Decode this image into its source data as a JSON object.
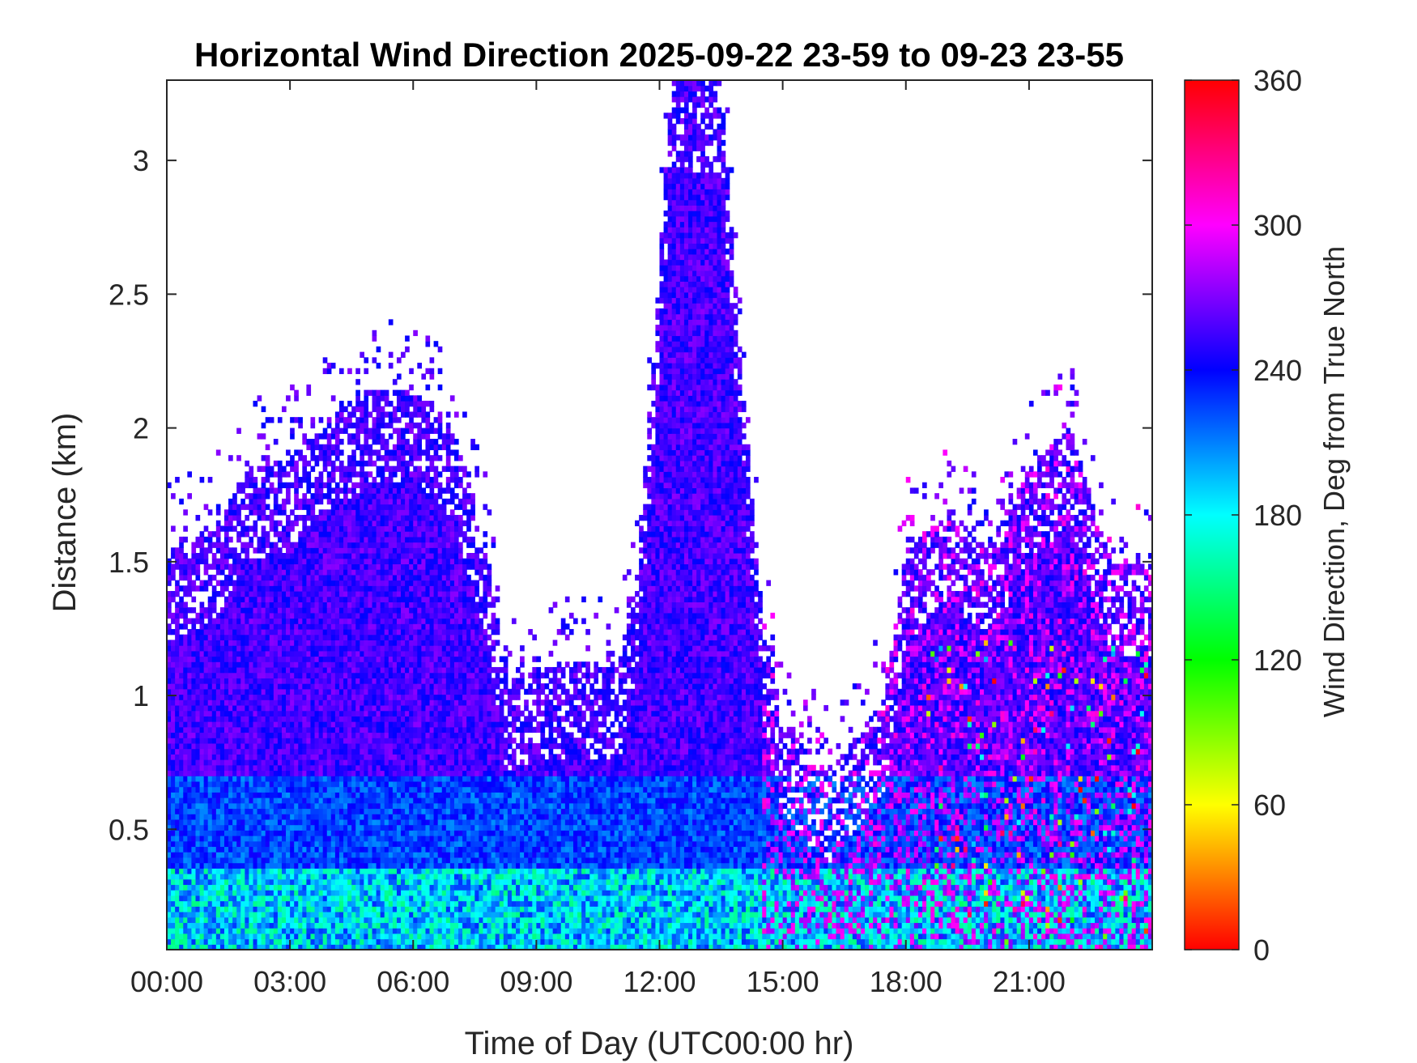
{
  "chart_data": {
    "type": "heatmap",
    "title": "Horizontal Wind Direction 2025-09-22 23-59 to 09-23 23-55",
    "xlabel": "Time of Day (UTC00:00 hr)",
    "ylabel": "Distance (km)",
    "xlim": [
      0,
      24
    ],
    "ylim": [
      0.05,
      3.3
    ],
    "x_ticks": [
      {
        "value": 0,
        "label": "00:00"
      },
      {
        "value": 3,
        "label": "03:00"
      },
      {
        "value": 6,
        "label": "06:00"
      },
      {
        "value": 9,
        "label": "09:00"
      },
      {
        "value": 12,
        "label": "12:00"
      },
      {
        "value": 15,
        "label": "15:00"
      },
      {
        "value": 18,
        "label": "18:00"
      },
      {
        "value": 21,
        "label": "21:00"
      }
    ],
    "y_ticks": [
      {
        "value": 0.5,
        "label": "0.5"
      },
      {
        "value": 1,
        "label": "1"
      },
      {
        "value": 1.5,
        "label": "1.5"
      },
      {
        "value": 2,
        "label": "2"
      },
      {
        "value": 2.5,
        "label": "2.5"
      },
      {
        "value": 3,
        "label": "3"
      }
    ],
    "colorbar": {
      "label": "Wind Direction, Deg from True North",
      "range": [
        0,
        360
      ],
      "colormap": "hsv",
      "ticks": [
        {
          "value": 0,
          "label": "0"
        },
        {
          "value": 60,
          "label": "60"
        },
        {
          "value": 120,
          "label": "120"
        },
        {
          "value": 180,
          "label": "180"
        },
        {
          "value": 240,
          "label": "240"
        },
        {
          "value": 300,
          "label": "300"
        },
        {
          "value": 360,
          "label": "360"
        }
      ]
    },
    "data_top_profile": [
      {
        "time": 0.0,
        "top_km": 1.55
      },
      {
        "time": 1.0,
        "top_km": 1.6
      },
      {
        "time": 2.0,
        "top_km": 1.85
      },
      {
        "time": 3.0,
        "top_km": 1.9
      },
      {
        "time": 4.0,
        "top_km": 2.05
      },
      {
        "time": 5.0,
        "top_km": 2.15
      },
      {
        "time": 6.0,
        "top_km": 2.15
      },
      {
        "time": 7.0,
        "top_km": 2.0
      },
      {
        "time": 7.8,
        "top_km": 1.55
      },
      {
        "time": 8.3,
        "top_km": 1.05
      },
      {
        "time": 9.0,
        "top_km": 1.1
      },
      {
        "time": 10.0,
        "top_km": 1.13
      },
      {
        "time": 11.0,
        "top_km": 1.1
      },
      {
        "time": 11.5,
        "top_km": 1.5
      },
      {
        "time": 12.3,
        "top_km": 3.3
      },
      {
        "time": 13.5,
        "top_km": 3.3
      },
      {
        "time": 14.0,
        "top_km": 2.2
      },
      {
        "time": 14.5,
        "top_km": 1.3
      },
      {
        "time": 15.0,
        "top_km": 0.9
      },
      {
        "time": 15.6,
        "top_km": 0.8
      },
      {
        "time": 16.2,
        "top_km": 0.7
      },
      {
        "time": 17.0,
        "top_km": 0.9
      },
      {
        "time": 17.5,
        "top_km": 1.0
      },
      {
        "time": 18.0,
        "top_km": 1.55
      },
      {
        "time": 19.0,
        "top_km": 1.7
      },
      {
        "time": 20.0,
        "top_km": 1.55
      },
      {
        "time": 21.0,
        "top_km": 1.85
      },
      {
        "time": 22.0,
        "top_km": 2.0
      },
      {
        "time": 23.0,
        "top_km": 1.5
      },
      {
        "time": 24.0,
        "top_km": 1.5
      }
    ],
    "colors": {
      "axis": "#262626",
      "background": "#ffffff"
    }
  }
}
